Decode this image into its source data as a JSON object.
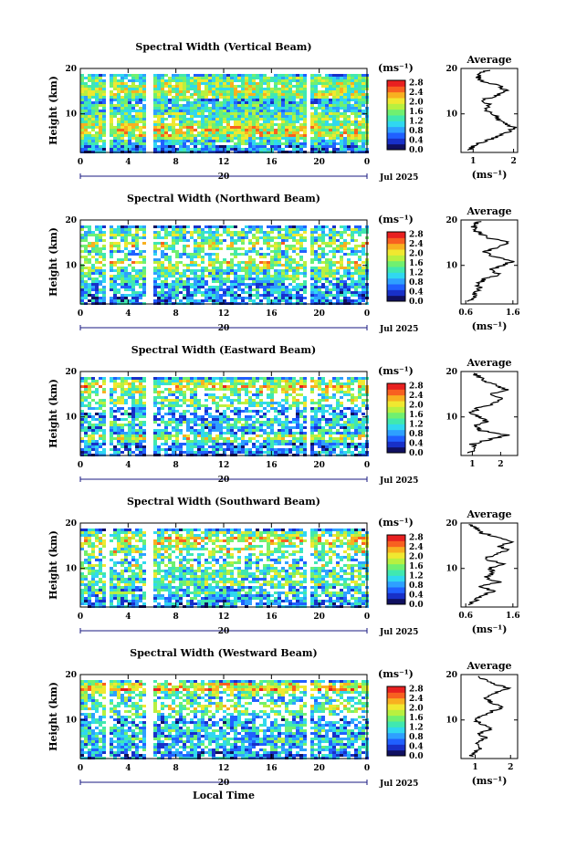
{
  "chart_data": [
    {
      "type": "heatmap",
      "title": "Spectral Width (Vertical Beam)",
      "ylabel": "Height (km)",
      "y_ticks": [
        "10",
        "20"
      ],
      "x_ticks": [
        "0",
        "4",
        "8",
        "12",
        "16",
        "20",
        "0"
      ],
      "date_marker": "20",
      "date_label": "Jul 2025",
      "xlim": [
        0,
        24
      ],
      "ylim": [
        1.5,
        20
      ],
      "colorbar": {
        "unit": "(ms⁻¹)",
        "ticks": [
          "0.0",
          "0.4",
          "0.8",
          "1.2",
          "1.6",
          "2.0",
          "2.4",
          "2.8"
        ],
        "range": [
          0,
          2.9
        ]
      },
      "average_profile": {
        "title": "Average",
        "xlabel": "(ms⁻¹)",
        "x_ticks": [
          "1",
          "2"
        ],
        "xlim": [
          0.7,
          2.1
        ],
        "y_ticks": [
          "10",
          "20"
        ],
        "ylim": [
          1.5,
          20
        ],
        "height": [
          2,
          3,
          4,
          5,
          6,
          7,
          8,
          9,
          10,
          11,
          12,
          13,
          14,
          15,
          16,
          17,
          18,
          19,
          19.8
        ],
        "value": [
          0.9,
          1.0,
          1.3,
          1.6,
          1.9,
          2.0,
          1.8,
          1.6,
          1.5,
          1.3,
          1.4,
          1.2,
          1.6,
          1.8,
          1.7,
          1.3,
          1.1,
          1.2,
          1.4
        ]
      }
    },
    {
      "type": "heatmap",
      "title": "Spectral Width (Northward Beam)",
      "ylabel": "Height (km)",
      "y_ticks": [
        "10",
        "20"
      ],
      "x_ticks": [
        "0",
        "4",
        "8",
        "12",
        "16",
        "20",
        "0"
      ],
      "date_marker": "20",
      "date_label": "Jul 2025",
      "xlim": [
        0,
        24
      ],
      "ylim": [
        1.5,
        20
      ],
      "colorbar": {
        "unit": "(ms⁻¹)",
        "ticks": [
          "0.0",
          "0.4",
          "0.8",
          "1.2",
          "1.6",
          "2.0",
          "2.4",
          "2.8"
        ],
        "range": [
          0,
          2.9
        ]
      },
      "average_profile": {
        "title": "Average",
        "xlabel": "(ms⁻¹)",
        "x_ticks": [
          "0.6",
          "1.6"
        ],
        "xlim": [
          0.5,
          1.7
        ],
        "y_ticks": [
          "10",
          "20"
        ],
        "ylim": [
          1.5,
          20
        ],
        "height": [
          2,
          3,
          4,
          5,
          6,
          7,
          8,
          9,
          10,
          11,
          12,
          13,
          14,
          15,
          16,
          17,
          18,
          19,
          19.8
        ],
        "value": [
          0.7,
          0.75,
          0.8,
          0.9,
          0.85,
          1.0,
          1.3,
          1.1,
          1.4,
          1.6,
          1.2,
          1.0,
          1.3,
          1.5,
          1.1,
          0.9,
          0.8,
          0.75,
          0.9
        ]
      }
    },
    {
      "type": "heatmap",
      "title": "Spectral Width (Eastward Beam)",
      "ylabel": "Height (km)",
      "y_ticks": [
        "10",
        "20"
      ],
      "x_ticks": [
        "0",
        "4",
        "8",
        "12",
        "16",
        "20",
        "0"
      ],
      "date_marker": "20",
      "date_label": "Jul 2025",
      "xlim": [
        0,
        24
      ],
      "ylim": [
        1.5,
        20
      ],
      "colorbar": {
        "unit": "(ms⁻¹)",
        "ticks": [
          "0.0",
          "0.4",
          "0.8",
          "1.2",
          "1.6",
          "2.0",
          "2.4",
          "2.8"
        ],
        "range": [
          0,
          2.9
        ]
      },
      "average_profile": {
        "title": "Average",
        "xlabel": "",
        "x_ticks": [
          "1",
          "2"
        ],
        "xlim": [
          0.6,
          2.6
        ],
        "y_ticks": [
          "10",
          "20"
        ],
        "ylim": [
          1.5,
          20
        ],
        "height": [
          2,
          3,
          4,
          5,
          6,
          7,
          8,
          9,
          10,
          11,
          12,
          13,
          14,
          15,
          16,
          17,
          18,
          19,
          19.8
        ],
        "value": [
          0.9,
          1.1,
          1.0,
          1.6,
          2.2,
          1.3,
          1.1,
          1.5,
          1.2,
          1.0,
          1.2,
          1.8,
          2.0,
          1.6,
          2.2,
          1.9,
          1.4,
          1.2,
          1.0
        ]
      }
    },
    {
      "type": "heatmap",
      "title": "Spectral Width (Southward Beam)",
      "ylabel": "Height (km)",
      "y_ticks": [
        "10",
        "20"
      ],
      "x_ticks": [
        "0",
        "4",
        "8",
        "12",
        "16",
        "20",
        "0"
      ],
      "date_marker": "20",
      "date_label": "Jul 2025",
      "xlim": [
        0,
        24
      ],
      "ylim": [
        1.5,
        20
      ],
      "colorbar": {
        "unit": "(ms⁻¹)",
        "ticks": [
          "0.0",
          "0.4",
          "0.8",
          "1.2",
          "1.6",
          "2.0",
          "2.4",
          "2.8"
        ],
        "range": [
          0,
          2.9
        ]
      },
      "average_profile": {
        "title": "Average",
        "xlabel": "(ms⁻¹)",
        "x_ticks": [
          "0.6",
          "1.6"
        ],
        "xlim": [
          0.5,
          1.7
        ],
        "y_ticks": [
          "10",
          "20"
        ],
        "ylim": [
          1.5,
          20
        ],
        "height": [
          2,
          3,
          4,
          5,
          6,
          7,
          8,
          9,
          10,
          11,
          12,
          13,
          14,
          15,
          16,
          17,
          18,
          19,
          19.8
        ],
        "value": [
          0.7,
          0.8,
          0.9,
          1.2,
          0.9,
          1.3,
          1.0,
          1.2,
          1.1,
          1.4,
          1.0,
          1.2,
          1.5,
          1.3,
          1.6,
          1.2,
          0.9,
          0.8,
          0.7
        ]
      }
    },
    {
      "type": "heatmap",
      "title": "Spectral Width (Westward Beam)",
      "ylabel": "Height (km)",
      "y_ticks": [
        "10",
        "20"
      ],
      "x_ticks": [
        "0",
        "4",
        "8",
        "12",
        "16",
        "20",
        "0"
      ],
      "date_marker": "20",
      "date_label": "Jul 2025",
      "xlabel": "Local Time",
      "xlim": [
        0,
        24
      ],
      "ylim": [
        1.5,
        20
      ],
      "colorbar": {
        "unit": "(ms⁻¹)",
        "ticks": [
          "0.0",
          "0.4",
          "0.8",
          "1.2",
          "1.6",
          "2.0",
          "2.4",
          "2.8"
        ],
        "range": [
          0,
          2.9
        ]
      },
      "average_profile": {
        "title": "Average",
        "xlabel": "(ms⁻¹)",
        "x_ticks": [
          "1",
          "2"
        ],
        "xlim": [
          0.6,
          2.2
        ],
        "y_ticks": [
          "10",
          "20"
        ],
        "ylim": [
          1.5,
          20
        ],
        "height": [
          2,
          3,
          4,
          5,
          6,
          7,
          8,
          9,
          10,
          11,
          12,
          13,
          14,
          15,
          16,
          17,
          18,
          19,
          19.8
        ],
        "value": [
          0.9,
          1.0,
          1.2,
          1.0,
          1.3,
          1.1,
          1.4,
          1.2,
          1.0,
          1.2,
          1.5,
          1.8,
          1.4,
          1.3,
          1.6,
          1.9,
          1.5,
          1.2,
          1.1
        ]
      }
    }
  ]
}
